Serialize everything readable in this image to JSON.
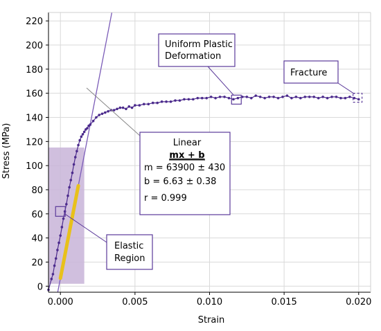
{
  "chart_data": {
    "type": "scatter",
    "title": "",
    "xlabel": "Strain",
    "ylabel": "Stress (MPa)",
    "xlim": [
      -0.0008,
      0.0208
    ],
    "ylim": [
      -5,
      227
    ],
    "grid": true,
    "x_ticks": [
      {
        "value": 0.0,
        "label": "0.000"
      },
      {
        "value": 0.005,
        "label": "0.005"
      },
      {
        "value": 0.01,
        "label": "0.010"
      },
      {
        "value": 0.015,
        "label": "0.015"
      },
      {
        "value": 0.02,
        "label": "0.020"
      }
    ],
    "y_ticks": [
      {
        "value": 0,
        "label": "0"
      },
      {
        "value": 20,
        "label": "20"
      },
      {
        "value": 40,
        "label": "40"
      },
      {
        "value": 60,
        "label": "60"
      },
      {
        "value": 80,
        "label": "80"
      },
      {
        "value": 100,
        "label": "100"
      },
      {
        "value": 120,
        "label": "120"
      },
      {
        "value": 140,
        "label": "140"
      },
      {
        "value": 160,
        "label": "160"
      },
      {
        "value": 180,
        "label": "180"
      },
      {
        "value": 200,
        "label": "200"
      },
      {
        "value": 220,
        "label": "220"
      }
    ],
    "colors": {
      "data": "#4b2a8c",
      "fit_line": "#7b5cb8",
      "highlight": "#e8c11a",
      "region_fill": "#c8b4d8",
      "annotation": "#5b3a9a",
      "grid": "#d9d9d9"
    },
    "series": [
      {
        "x": [
          -0.0008,
          -0.0006,
          -0.0005,
          -0.0004,
          -0.0003,
          -0.0002,
          -0.0001,
          0.0,
          0.0001,
          0.0002,
          0.0003,
          0.0004,
          0.0005,
          0.0006,
          0.0007,
          0.0008,
          0.0009,
          0.001,
          0.0011,
          0.0012,
          0.0013,
          0.0014,
          0.0015,
          0.0016,
          0.0017,
          0.0018,
          0.0019,
          0.002,
          0.0022,
          0.0024,
          0.0026,
          0.0028,
          0.003,
          0.0032,
          0.0034,
          0.0036,
          0.0038,
          0.004,
          0.0042,
          0.0044,
          0.0046,
          0.0048,
          0.005,
          0.0053,
          0.0056,
          0.0059,
          0.0062,
          0.0065,
          0.0068,
          0.0071,
          0.0074,
          0.0077,
          0.008,
          0.0083,
          0.0086,
          0.0089,
          0.0092,
          0.0095,
          0.0098,
          0.0101,
          0.0104,
          0.0107,
          0.011,
          0.0113,
          0.0116,
          0.0119,
          0.0122,
          0.0125,
          0.0128,
          0.0131,
          0.0134,
          0.0137,
          0.014,
          0.0143,
          0.0146,
          0.0149,
          0.0152,
          0.0155,
          0.0158,
          0.0161,
          0.0164,
          0.0167,
          0.017,
          0.0173,
          0.0176,
          0.0179,
          0.0182,
          0.0185,
          0.0188,
          0.0191,
          0.0194,
          0.0197,
          0.02
        ],
        "y": [
          -3,
          6,
          10,
          17,
          23,
          30,
          36,
          42,
          49,
          56,
          62,
          68,
          75,
          82,
          88,
          94,
          101,
          107,
          112,
          117,
          121,
          124,
          126,
          128,
          130,
          131,
          133,
          134,
          137,
          140,
          142,
          143,
          144,
          145,
          146,
          146,
          147,
          148,
          148,
          147,
          149,
          148,
          150,
          150,
          151,
          151,
          152,
          152,
          153,
          153,
          153,
          154,
          154,
          155,
          155,
          155,
          156,
          156,
          156,
          157,
          156,
          157,
          157,
          156,
          155,
          156,
          157,
          157,
          156,
          158,
          157,
          156,
          157,
          157,
          156,
          157,
          158,
          156,
          157,
          156,
          157,
          157,
          157,
          156,
          157,
          156,
          157,
          157,
          156,
          156,
          157,
          156,
          155
        ]
      }
    ],
    "fit": {
      "slope": 63900,
      "intercept": 6.63
    },
    "fit_range": [
      0.0,
      0.0012
    ],
    "elastic_region": {
      "x": [
        -0.0008,
        0.0016
      ],
      "y": [
        2,
        115
      ]
    },
    "annotations": {
      "linear": {
        "title": "Linear",
        "formula": "mx + b",
        "m": "m = 63900 ± 430",
        "b": "b = 6.63    ± 0.38",
        "r": "r = 0.999"
      },
      "elastic": [
        "Elastic",
        "Region"
      ],
      "uniform": [
        "Uniform Plastic",
        "Deformation"
      ],
      "fracture": "Fracture"
    }
  }
}
